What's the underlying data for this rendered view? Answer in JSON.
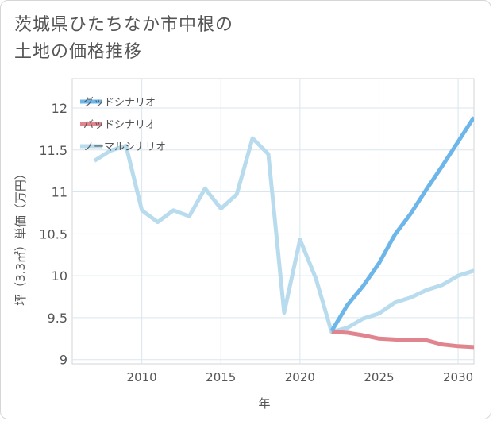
{
  "title_line1": "茨城県ひたちなか市中根の",
  "title_line2": "土地の価格推移",
  "chart_data": {
    "type": "line",
    "xlabel": "年",
    "ylabel": "坪（3.3㎡）単価（万円）",
    "xlim": [
      2005.6,
      2031
    ],
    "ylim": [
      8.95,
      12.35
    ],
    "xticks": [
      2010,
      2015,
      2020,
      2025,
      2030
    ],
    "yticks": [
      9,
      9.5,
      10,
      10.5,
      11,
      11.5,
      12
    ],
    "xtick_labels": [
      "2010",
      "2015",
      "2020",
      "2025",
      "2030"
    ],
    "ytick_labels": [
      "9",
      "9.5",
      "10",
      "10.5",
      "11",
      "11.5",
      "12"
    ],
    "grid": true,
    "legend_position": "top-left",
    "series": [
      {
        "name": "グッドシナリオ",
        "color": "#6cb6ea",
        "x": [
          2022,
          2023,
          2024,
          2025,
          2026,
          2027,
          2028,
          2029,
          2030,
          2031
        ],
        "y": [
          9.34,
          9.65,
          9.88,
          10.15,
          10.49,
          10.74,
          11.03,
          11.31,
          11.6,
          11.89
        ]
      },
      {
        "name": "バッドシナリオ",
        "color": "#e0848e",
        "x": [
          2022,
          2023,
          2024,
          2025,
          2026,
          2027,
          2028,
          2029,
          2030,
          2031
        ],
        "y": [
          9.33,
          9.32,
          9.29,
          9.25,
          9.24,
          9.23,
          9.23,
          9.18,
          9.16,
          9.15
        ]
      },
      {
        "name": "ノーマルシナリオ",
        "color": "#b8dcee",
        "x": [
          2007,
          2008,
          2009,
          2010,
          2011,
          2012,
          2013,
          2014,
          2015,
          2016,
          2017,
          2018,
          2019,
          2020,
          2021,
          2022,
          2023,
          2024,
          2025,
          2026,
          2027,
          2028,
          2029,
          2030,
          2031
        ],
        "y": [
          11.37,
          11.49,
          11.55,
          10.78,
          10.64,
          10.78,
          10.71,
          11.04,
          10.8,
          10.97,
          11.64,
          11.45,
          9.56,
          10.43,
          9.97,
          9.33,
          9.38,
          9.49,
          9.55,
          9.68,
          9.74,
          9.83,
          9.89,
          10.0,
          10.06
        ]
      }
    ]
  }
}
